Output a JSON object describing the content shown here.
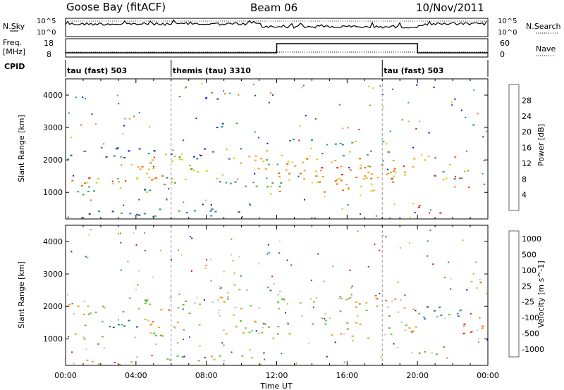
{
  "header": {
    "station": "Goose Bay (fitACF)",
    "beam": "Beam 06",
    "date": "10/Nov/2011"
  },
  "top_panels": {
    "nsky_label": "N.Sky",
    "nsearch_label": "N.Search",
    "noise_ticks": [
      "10^5",
      "10^0"
    ],
    "freq_label_line1": "Freq.",
    "freq_label_line2": "[MHz]",
    "freq_ticks": [
      "18",
      "8"
    ],
    "nave_label": "Nave",
    "nave_ticks": [
      "60",
      "0"
    ],
    "cpid_label": "CPID",
    "cpid_segments": [
      {
        "label": "tau (fast) 503",
        "start_hour": 0
      },
      {
        "label": "themis (tau) 3310",
        "start_hour": 6
      },
      {
        "label": "tau (fast) 503",
        "start_hour": 18
      }
    ]
  },
  "chart_data": [
    {
      "type": "heatmap",
      "title": "",
      "xlabel": "",
      "ylabel": "Slant Range [km]",
      "xlim_hours": [
        0,
        24
      ],
      "ylim": [
        180,
        4500
      ],
      "x_tick_labels": [
        "00:00",
        "04:00",
        "08:00",
        "12:00",
        "16:00",
        "20:00",
        "00:00"
      ],
      "y_ticks": [
        1000,
        2000,
        3000,
        4000
      ],
      "colorbar": {
        "label": "Power [dB]",
        "ticks": [
          "4",
          "8",
          "12",
          "16",
          "20",
          "24",
          "28"
        ],
        "colors": [
          "#0000ff",
          "#2040a8",
          "#208a8a",
          "#40b040",
          "#d0d020",
          "#f0a020",
          "#f06a10",
          "#e01010"
        ]
      },
      "regions": [
        {
          "t0": 0.0,
          "t1": 6.2,
          "r0": 1300,
          "r1": 1600,
          "level": 5
        },
        {
          "t0": 0.0,
          "t1": 6.0,
          "r0": 950,
          "r1": 1200,
          "level": 3
        },
        {
          "t0": 0.3,
          "t1": 2.0,
          "r0": 1200,
          "r1": 1500,
          "level": 7
        },
        {
          "t0": 4.0,
          "t1": 5.0,
          "r0": 1450,
          "r1": 1900,
          "level": 5
        },
        {
          "t0": 0.0,
          "t1": 10.0,
          "r0": 2050,
          "r1": 2400,
          "level": 1
        },
        {
          "t0": 4.5,
          "t1": 11.5,
          "r0": 1600,
          "r1": 2200,
          "level": 4
        },
        {
          "t0": 5.5,
          "t1": 11.5,
          "r0": 1150,
          "r1": 1500,
          "level": 3
        },
        {
          "t0": 8.5,
          "t1": 10.3,
          "r0": 2700,
          "r1": 3300,
          "level": 2
        },
        {
          "t0": 7.7,
          "t1": 9.0,
          "r0": 3800,
          "r1": 4200,
          "level": 2
        },
        {
          "t0": 11.0,
          "t1": 12.3,
          "r0": 900,
          "r1": 2400,
          "level": 4
        },
        {
          "t0": 12.0,
          "t1": 20.0,
          "r0": 1000,
          "r1": 2100,
          "level": 5
        },
        {
          "t0": 13.0,
          "t1": 19.0,
          "r0": 1300,
          "r1": 1800,
          "level": 6
        },
        {
          "t0": 12.5,
          "t1": 18.5,
          "r0": 2100,
          "r1": 2700,
          "level": 3
        },
        {
          "t0": 20.0,
          "t1": 22.3,
          "r0": 1800,
          "r1": 2200,
          "level": 5
        },
        {
          "t0": 20.0,
          "t1": 21.5,
          "r0": 300,
          "r1": 700,
          "level": 7
        },
        {
          "t0": 22.0,
          "t1": 24.0,
          "r0": 1000,
          "r1": 1400,
          "level": 6
        },
        {
          "t0": 21.0,
          "t1": 24.0,
          "r0": 1400,
          "r1": 1700,
          "level": 3
        },
        {
          "t0": 22.8,
          "t1": 24.0,
          "r0": 2700,
          "r1": 3100,
          "level": 1
        },
        {
          "t0": 0.0,
          "t1": 11.0,
          "r0": 180,
          "r1": 500,
          "level": 2
        }
      ]
    },
    {
      "type": "heatmap",
      "title": "",
      "xlabel": "Time UT",
      "ylabel": "Slant Range [km]",
      "xlim_hours": [
        0,
        24
      ],
      "ylim": [
        180,
        4500
      ],
      "x_tick_labels": [
        "00:00",
        "04:00",
        "08:00",
        "12:00",
        "16:00",
        "20:00",
        "00:00"
      ],
      "y_ticks": [
        1000,
        2000,
        3000,
        4000
      ],
      "colorbar": {
        "label": "Velocity [m s^-1]",
        "ticks": [
          "1000",
          "500",
          "100",
          "25",
          "-25",
          "-100",
          "-500",
          "-1000"
        ],
        "colors": [
          "#0028c0",
          "#2060a0",
          "#208a70",
          "#60c040",
          "#c8c8c0",
          "#f0a020",
          "#f06a10",
          "#e01010"
        ]
      },
      "regions": [
        {
          "t0": 0.0,
          "t1": 6.2,
          "r0": 1300,
          "r1": 1600,
          "level": 2
        },
        {
          "t0": 0.0,
          "t1": 6.0,
          "r0": 950,
          "r1": 1200,
          "level": 4
        },
        {
          "t0": 3.5,
          "t1": 5.5,
          "r0": 1300,
          "r1": 1700,
          "level": 5
        },
        {
          "t0": 0.0,
          "t1": 11.5,
          "r0": 1700,
          "r1": 2300,
          "level": 4
        },
        {
          "t0": 5.5,
          "t1": 11.0,
          "r0": 1150,
          "r1": 1600,
          "level": 4
        },
        {
          "t0": 7.7,
          "t1": 9.0,
          "r0": 3000,
          "r1": 3300,
          "level": 5
        },
        {
          "t0": 8.5,
          "t1": 10.5,
          "r0": 2300,
          "r1": 2900,
          "level": 4
        },
        {
          "t0": 11.0,
          "t1": 12.3,
          "r0": 1100,
          "r1": 2800,
          "level": 3
        },
        {
          "t0": 12.0,
          "t1": 20.0,
          "r0": 1000,
          "r1": 2300,
          "level": 4
        },
        {
          "t0": 17.5,
          "t1": 19.5,
          "r0": 1900,
          "r1": 2400,
          "level": 5
        },
        {
          "t0": 20.0,
          "t1": 21.5,
          "r0": 400,
          "r1": 800,
          "level": 4
        },
        {
          "t0": 20.0,
          "t1": 22.5,
          "r0": 1500,
          "r1": 2100,
          "level": 2
        },
        {
          "t0": 22.5,
          "t1": 24.0,
          "r0": 1000,
          "r1": 1600,
          "level": 6
        },
        {
          "t0": 23.0,
          "t1": 24.0,
          "r0": 2700,
          "r1": 3000,
          "level": 5
        },
        {
          "t0": 0.0,
          "t1": 11.0,
          "r0": 180,
          "r1": 500,
          "level": 4
        }
      ]
    }
  ]
}
